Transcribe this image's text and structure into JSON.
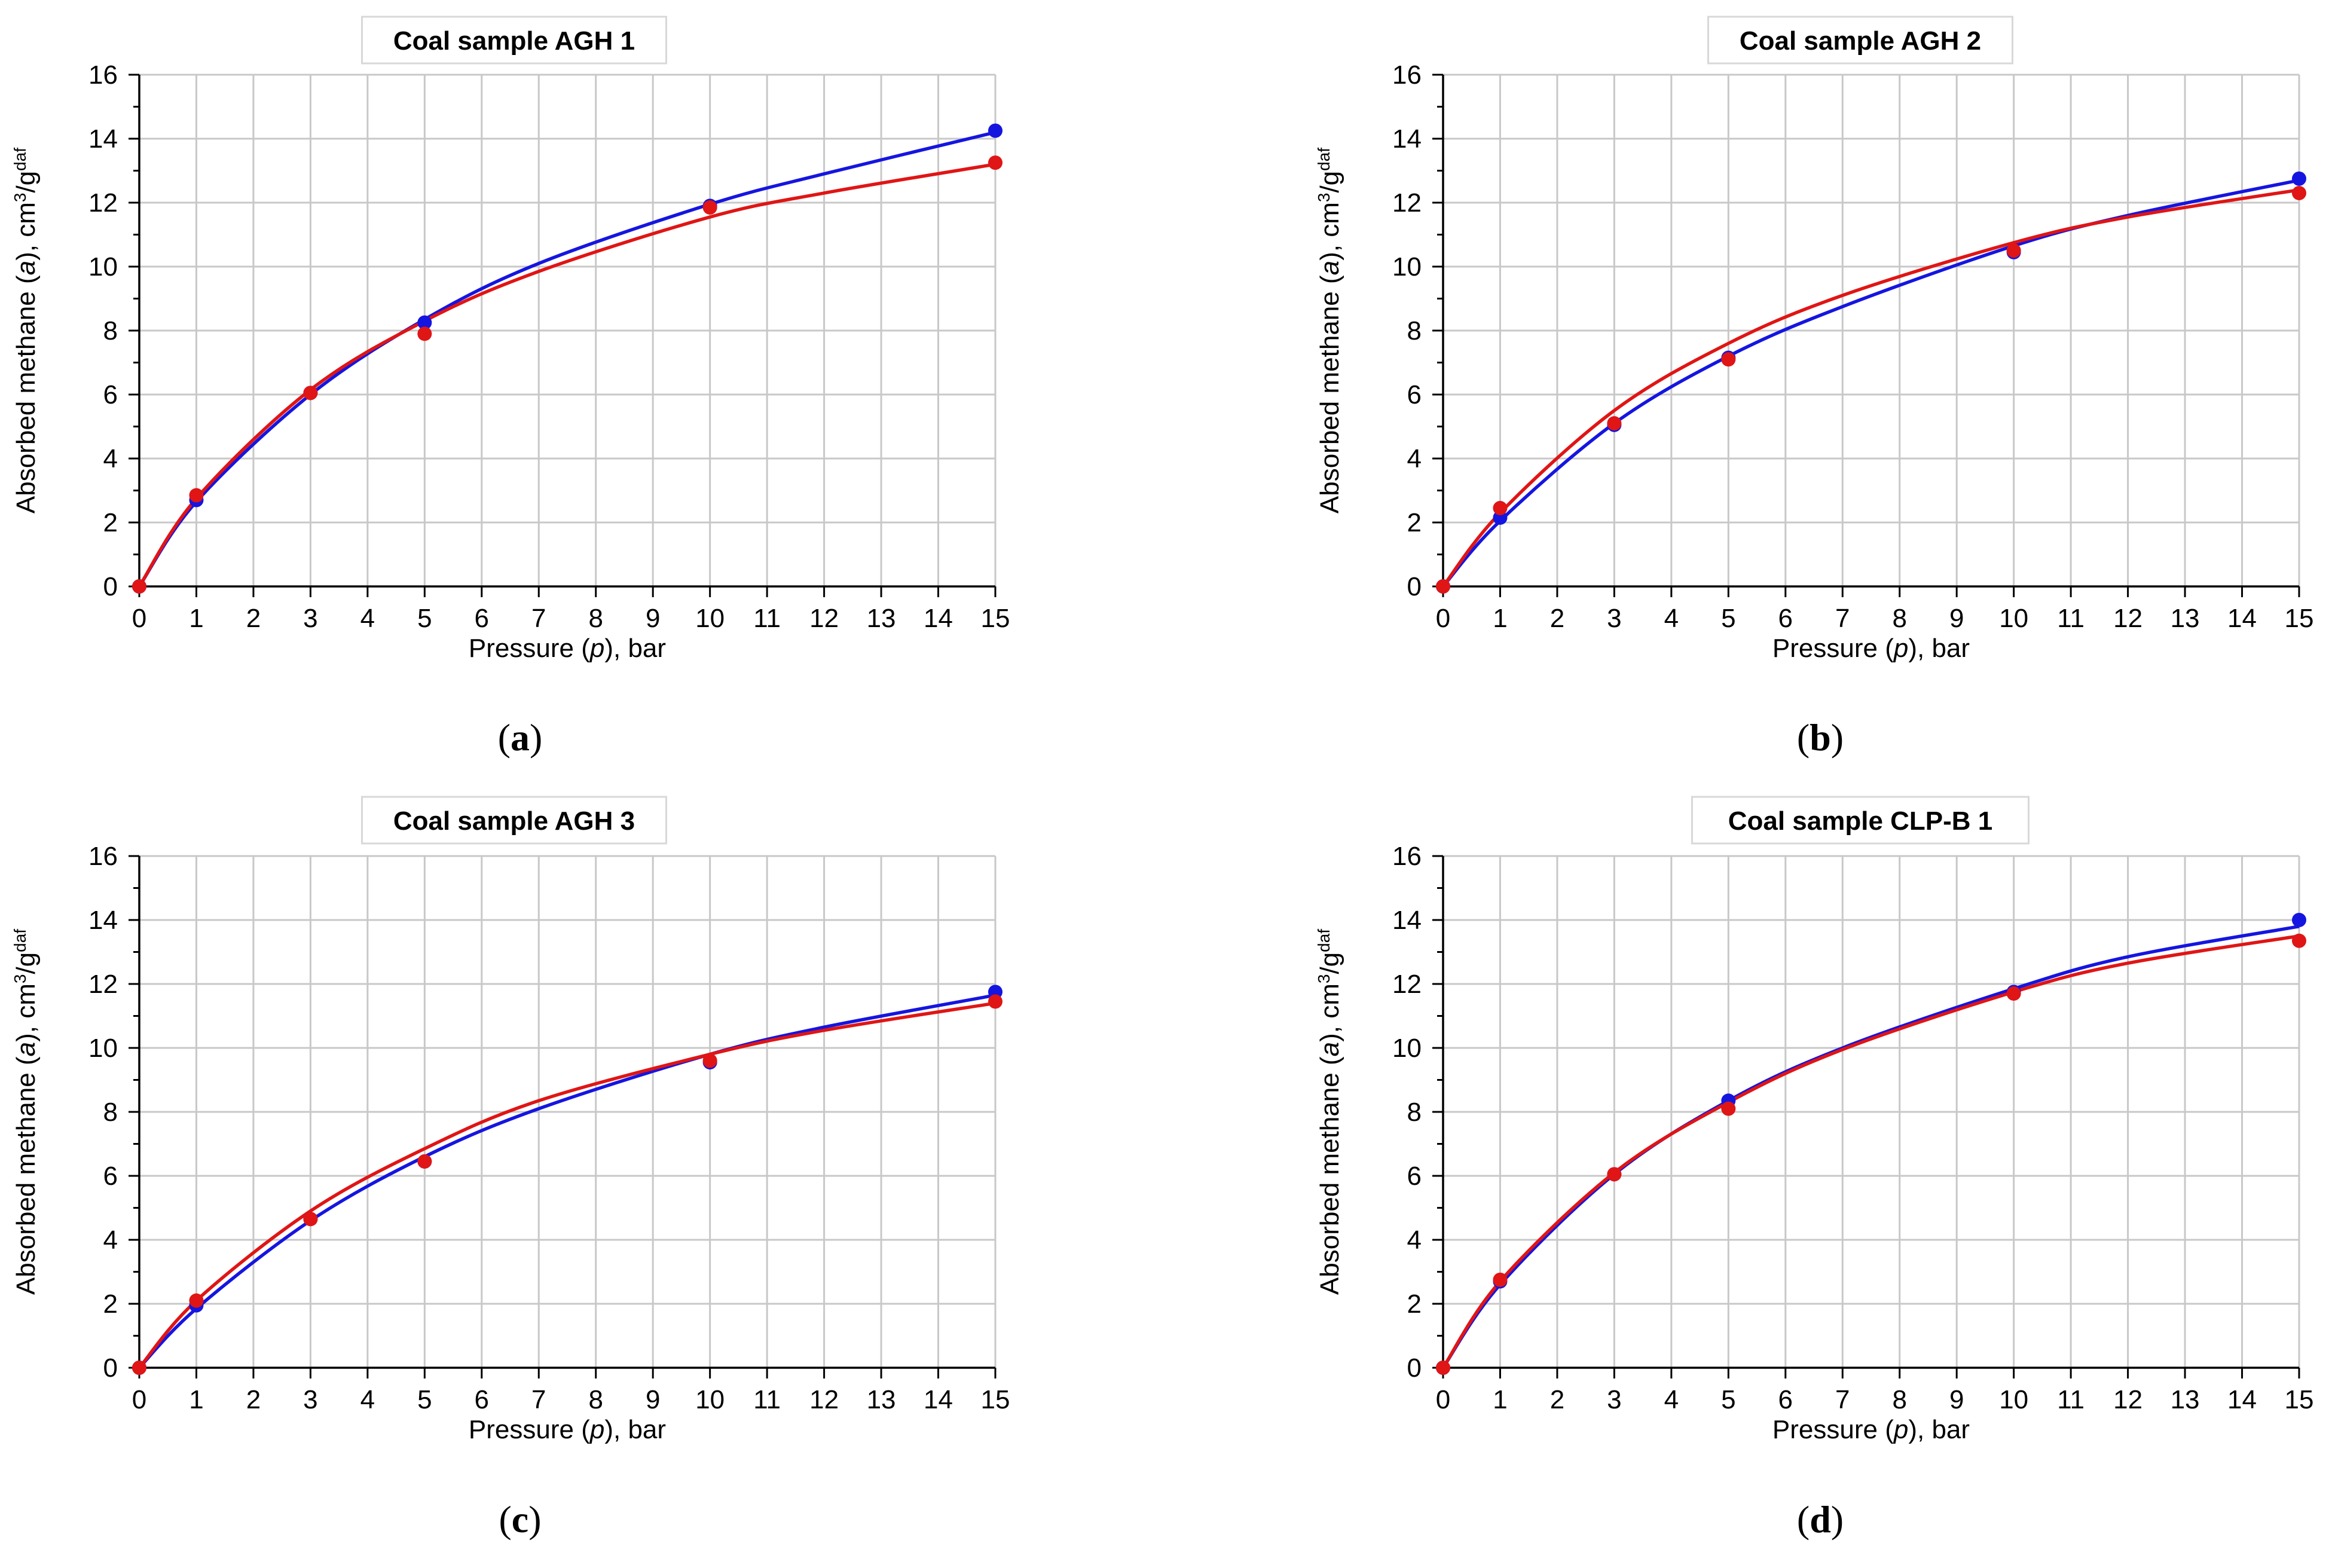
{
  "chart_data": [
    {
      "type": "scatter",
      "panel_label": [
        "(",
        "a",
        ")"
      ],
      "title": "Coal sample AGH 1",
      "xlabel": [
        "Pressure (",
        "p",
        "), bar"
      ],
      "ylabel": [
        "Absorbed methane (",
        "a",
        "), cm",
        "3",
        "/g",
        "daf"
      ],
      "xlim": [
        0,
        15
      ],
      "ylim": [
        0,
        16
      ],
      "xticks": [
        0,
        1,
        2,
        3,
        4,
        5,
        6,
        7,
        8,
        9,
        10,
        11,
        12,
        13,
        14,
        15
      ],
      "yticks": [
        0,
        2,
        4,
        6,
        8,
        10,
        12,
        14,
        16
      ],
      "grid": true,
      "series": [
        {
          "name": "blue",
          "color": "#1515e0",
          "x": [
            0,
            1,
            3,
            5,
            10,
            15
          ],
          "y": [
            0,
            2.7,
            6.05,
            8.25,
            11.9,
            14.25
          ],
          "fit": {
            "x": [
              0,
              1,
              3,
              5,
              7,
              10,
              12,
              15
            ],
            "y": [
              0,
              2.65,
              6.0,
              8.35,
              10.1,
              11.95,
              12.9,
              14.2
            ]
          }
        },
        {
          "name": "red",
          "color": "#e01515",
          "x": [
            0,
            1,
            3,
            5,
            10,
            15
          ],
          "y": [
            0,
            2.85,
            6.05,
            7.9,
            11.85,
            13.25
          ],
          "fit": {
            "x": [
              0,
              1,
              3,
              5,
              7,
              10,
              12,
              15
            ],
            "y": [
              0,
              2.75,
              6.15,
              8.3,
              9.85,
              11.55,
              12.3,
              13.2
            ]
          }
        }
      ]
    },
    {
      "type": "scatter",
      "panel_label": [
        "(",
        "b",
        ")"
      ],
      "title": "Coal sample AGH 2",
      "xlabel": [
        "Pressure (",
        "p",
        "), bar"
      ],
      "ylabel": [
        "Absorbed methane (",
        "a",
        "), cm",
        "3",
        "/g",
        "daf"
      ],
      "xlim": [
        0,
        15
      ],
      "ylim": [
        0,
        16
      ],
      "xticks": [
        0,
        1,
        2,
        3,
        4,
        5,
        6,
        7,
        8,
        9,
        10,
        11,
        12,
        13,
        14,
        15
      ],
      "yticks": [
        0,
        2,
        4,
        6,
        8,
        10,
        12,
        14,
        16
      ],
      "grid": true,
      "series": [
        {
          "name": "blue",
          "color": "#1515e0",
          "x": [
            0,
            1,
            3,
            5,
            10,
            15
          ],
          "y": [
            0,
            2.15,
            5.05,
            7.15,
            10.45,
            12.75
          ],
          "fit": {
            "x": [
              0,
              1,
              3,
              5,
              7,
              10,
              12,
              15
            ],
            "y": [
              0,
              2.05,
              5.1,
              7.2,
              8.75,
              10.65,
              11.6,
              12.7
            ]
          }
        },
        {
          "name": "red",
          "color": "#e01515",
          "x": [
            0,
            1,
            3,
            5,
            10,
            15
          ],
          "y": [
            0,
            2.45,
            5.1,
            7.1,
            10.5,
            12.3
          ],
          "fit": {
            "x": [
              0,
              1,
              3,
              5,
              7,
              10,
              12,
              15
            ],
            "y": [
              0,
              2.3,
              5.5,
              7.6,
              9.1,
              10.75,
              11.55,
              12.4
            ]
          }
        }
      ]
    },
    {
      "type": "scatter",
      "panel_label": [
        "(",
        "c",
        ")"
      ],
      "title": "Coal sample AGH 3",
      "xlabel": [
        "Pressure (",
        "p",
        "), bar"
      ],
      "ylabel": [
        "Absorbed methane (",
        "a",
        "), cm",
        "3",
        "/g",
        "daf"
      ],
      "xlim": [
        0,
        15
      ],
      "ylim": [
        0,
        16
      ],
      "xticks": [
        0,
        1,
        2,
        3,
        4,
        5,
        6,
        7,
        8,
        9,
        10,
        11,
        12,
        13,
        14,
        15
      ],
      "yticks": [
        0,
        2,
        4,
        6,
        8,
        10,
        12,
        14,
        16
      ],
      "grid": true,
      "series": [
        {
          "name": "blue",
          "color": "#1515e0",
          "x": [
            0,
            1,
            3,
            5,
            10,
            15
          ],
          "y": [
            0,
            1.95,
            4.65,
            6.45,
            9.55,
            11.75
          ],
          "fit": {
            "x": [
              0,
              1,
              3,
              5,
              7,
              10,
              12,
              15
            ],
            "y": [
              0,
              1.85,
              4.6,
              6.6,
              8.1,
              9.8,
              10.65,
              11.65
            ]
          }
        },
        {
          "name": "red",
          "color": "#e01515",
          "x": [
            0,
            1,
            3,
            5,
            10,
            15
          ],
          "y": [
            0,
            2.1,
            4.65,
            6.45,
            9.6,
            11.45
          ],
          "fit": {
            "x": [
              0,
              1,
              3,
              5,
              7,
              10,
              12,
              15
            ],
            "y": [
              0,
              2.1,
              4.9,
              6.85,
              8.35,
              9.8,
              10.55,
              11.4
            ]
          }
        }
      ]
    },
    {
      "type": "scatter",
      "panel_label": [
        "(",
        "d",
        ")"
      ],
      "title": "Coal sample CLP-B 1",
      "xlabel": [
        "Pressure (",
        "p",
        "), bar"
      ],
      "ylabel": [
        "Absorbed methane (",
        "a",
        "), cm",
        "3",
        "/g",
        "daf"
      ],
      "xlim": [
        0,
        15
      ],
      "ylim": [
        0,
        16
      ],
      "xticks": [
        0,
        1,
        2,
        3,
        4,
        5,
        6,
        7,
        8,
        9,
        10,
        11,
        12,
        13,
        14,
        15
      ],
      "yticks": [
        0,
        2,
        4,
        6,
        8,
        10,
        12,
        14,
        16
      ],
      "grid": true,
      "series": [
        {
          "name": "blue",
          "color": "#1515e0",
          "x": [
            0,
            1,
            3,
            5,
            10,
            15
          ],
          "y": [
            0,
            2.7,
            6.05,
            8.35,
            11.75,
            14.0
          ],
          "fit": {
            "x": [
              0,
              1,
              3,
              5,
              7,
              10,
              12,
              15
            ],
            "y": [
              0,
              2.6,
              6.05,
              8.35,
              10.0,
              11.85,
              12.85,
              13.8
            ]
          }
        },
        {
          "name": "red",
          "color": "#e01515",
          "x": [
            0,
            1,
            3,
            5,
            10,
            15
          ],
          "y": [
            0,
            2.75,
            6.05,
            8.1,
            11.7,
            13.35
          ],
          "fit": {
            "x": [
              0,
              1,
              3,
              5,
              7,
              10,
              12,
              15
            ],
            "y": [
              0,
              2.7,
              6.1,
              8.3,
              9.95,
              11.75,
              12.65,
              13.5
            ]
          }
        }
      ]
    }
  ]
}
